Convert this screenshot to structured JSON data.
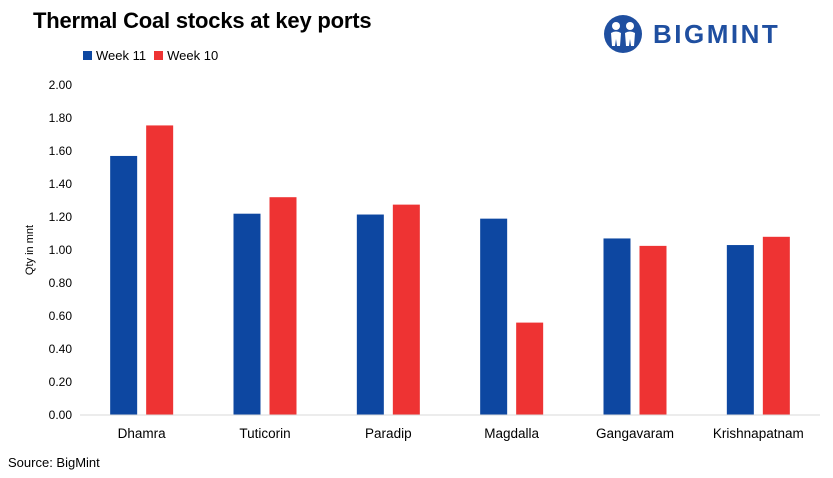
{
  "brand": {
    "name": "BIGMINT",
    "color": "#1f4fa0"
  },
  "source": "Source: BigMint",
  "chart_data": {
    "type": "bar",
    "title": "Thermal Coal stocks at key ports",
    "ylabel": "Qty in mnt",
    "xlabel": "",
    "ylim": [
      0,
      2.0
    ],
    "ytick_step": 0.2,
    "ytick_labels": [
      "0.00",
      "0.20",
      "0.40",
      "0.60",
      "0.80",
      "1.00",
      "1.20",
      "1.40",
      "1.60",
      "1.80",
      "2.00"
    ],
    "grid": false,
    "legend_position": "top-left",
    "categories": [
      "Dhamra",
      "Tuticorin",
      "Paradip",
      "Magdalla",
      "Gangavaram",
      "Krishnapatnam"
    ],
    "series": [
      {
        "name": "Week 11",
        "color": "#0d47a1",
        "values": [
          1.57,
          1.22,
          1.215,
          1.19,
          1.07,
          1.03
        ]
      },
      {
        "name": "Week 10",
        "color": "#ee3333",
        "values": [
          1.755,
          1.32,
          1.275,
          0.56,
          1.025,
          1.08
        ]
      }
    ]
  }
}
